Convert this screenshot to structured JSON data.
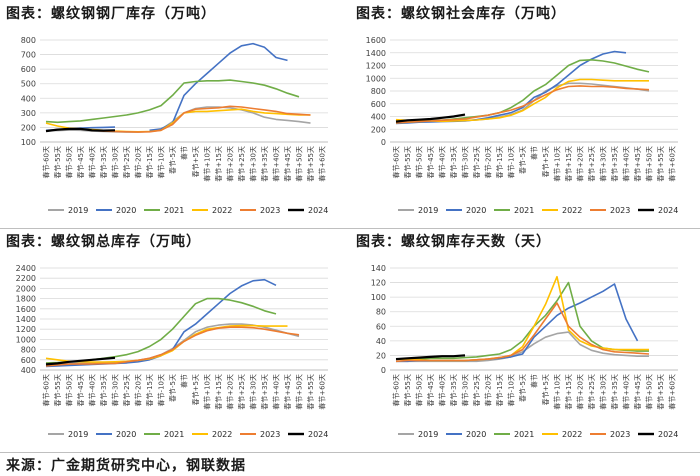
{
  "source_text": "来源：广金期货研究中心，钢联数据",
  "x_categories": [
    "春节-60天",
    "春节-55天",
    "春节-50天",
    "春节-45天",
    "春节-40天",
    "春节-35天",
    "春节-30天",
    "春节-25天",
    "春节-20天",
    "春节-15天",
    "春节-10天",
    "春节-5天",
    "春节",
    "春节+5天",
    "春节+10天",
    "春节+15天",
    "春节+20天",
    "春节+25天",
    "春节+30天",
    "春节+35天",
    "春节+40天",
    "春节+45天",
    "春节+50天",
    "春节+55天",
    "春节+60天"
  ],
  "series_colors": {
    "2019": "#a5a5a5",
    "2020": "#4472c4",
    "2021": "#70ad47",
    "2022": "#ffc000",
    "2023": "#ed7d31",
    "2024": "#000000"
  },
  "chart_data": [
    {
      "type": "line",
      "title": "图表：螺纹钢钢厂库存（万吨）",
      "yticks": [
        100,
        200,
        300,
        400,
        500,
        600,
        700,
        800
      ],
      "ylim": [
        100,
        800
      ],
      "series": [
        {
          "name": "2019",
          "values": [
            180,
            178,
            182,
            180,
            175,
            172,
            170,
            168,
            168,
            172,
            185,
            240,
            300,
            330,
            340,
            340,
            335,
            320,
            300,
            270,
            255,
            248,
            240,
            230,
            null
          ]
        },
        {
          "name": "2020",
          "values": [
            180,
            185,
            190,
            195,
            198,
            200,
            202,
            null,
            null,
            180,
            190,
            230,
            420,
            500,
            570,
            640,
            710,
            760,
            775,
            750,
            680,
            660,
            null,
            null,
            null
          ]
        },
        {
          "name": "2021",
          "values": [
            240,
            235,
            240,
            245,
            255,
            265,
            275,
            285,
            300,
            320,
            350,
            420,
            505,
            515,
            520,
            520,
            525,
            515,
            505,
            490,
            465,
            435,
            410,
            null,
            null
          ]
        },
        {
          "name": "2022",
          "values": [
            230,
            210,
            195,
            190,
            185,
            180,
            175,
            172,
            170,
            172,
            180,
            230,
            300,
            310,
            310,
            315,
            320,
            325,
            310,
            300,
            295,
            290,
            285,
            285,
            null
          ]
        },
        {
          "name": "2023",
          "values": [
            175,
            185,
            190,
            190,
            180,
            175,
            172,
            170,
            168,
            170,
            180,
            220,
            300,
            325,
            330,
            335,
            345,
            340,
            330,
            320,
            310,
            295,
            290,
            285,
            null
          ]
        },
        {
          "name": "2024",
          "values": [
            175,
            185,
            190,
            190,
            180,
            178,
            180,
            null,
            null,
            null,
            null,
            null,
            null,
            null,
            null,
            null,
            null,
            null,
            null,
            null,
            null,
            null,
            null,
            null,
            null
          ]
        }
      ],
      "legend": [
        "2019",
        "2020",
        "2021",
        "2022",
        "2023",
        "2024"
      ]
    },
    {
      "type": "line",
      "title": "图表：螺纹钢社会库存（万吨）",
      "yticks": [
        0,
        200,
        400,
        600,
        800,
        1000,
        1200,
        1400,
        1600
      ],
      "ylim": [
        0,
        1600
      ],
      "series": [
        {
          "name": "2019",
          "values": [
            330,
            340,
            345,
            350,
            345,
            340,
            340,
            345,
            360,
            390,
            430,
            500,
            650,
            800,
            880,
            920,
            920,
            910,
            890,
            870,
            850,
            830,
            800,
            null,
            null
          ]
        },
        {
          "name": "2020",
          "values": [
            290,
            300,
            310,
            315,
            320,
            325,
            330,
            350,
            380,
            420,
            460,
            540,
            700,
            780,
            900,
            1050,
            1200,
            1300,
            1380,
            1420,
            1400,
            null,
            null,
            null,
            null
          ]
        },
        {
          "name": "2021",
          "values": [
            300,
            310,
            320,
            330,
            340,
            360,
            380,
            400,
            420,
            460,
            540,
            650,
            800,
            900,
            1050,
            1200,
            1280,
            1290,
            1270,
            1240,
            1190,
            1140,
            1100,
            null,
            null
          ]
        },
        {
          "name": "2022",
          "values": [
            350,
            340,
            335,
            330,
            325,
            330,
            335,
            345,
            360,
            380,
            420,
            490,
            600,
            700,
            850,
            950,
            980,
            980,
            970,
            960,
            960,
            960,
            960,
            null,
            null
          ]
        },
        {
          "name": "2023",
          "values": [
            300,
            310,
            320,
            330,
            340,
            350,
            360,
            390,
            420,
            460,
            500,
            560,
            650,
            740,
            820,
            870,
            880,
            870,
            870,
            860,
            840,
            830,
            820,
            null,
            null
          ]
        },
        {
          "name": "2024",
          "values": [
            320,
            340,
            350,
            360,
            380,
            400,
            430,
            null,
            null,
            null,
            null,
            null,
            null,
            null,
            null,
            null,
            null,
            null,
            null,
            null,
            null,
            null,
            null,
            null,
            null
          ]
        }
      ],
      "legend": [
        "2019",
        "2020",
        "2021",
        "2022",
        "2023",
        "2024"
      ]
    },
    {
      "type": "line",
      "title": "图表：螺纹钢总库存（万吨）",
      "yticks": [
        400,
        600,
        800,
        1000,
        1200,
        1400,
        1600,
        1800,
        2000,
        2200,
        2400
      ],
      "ylim": [
        400,
        2400
      ],
      "series": [
        {
          "name": "2019",
          "values": [
            520,
            530,
            540,
            545,
            545,
            545,
            550,
            560,
            590,
            630,
            700,
            820,
            980,
            1150,
            1240,
            1280,
            1300,
            1300,
            1280,
            1240,
            1180,
            1120,
            1060,
            null,
            null
          ]
        },
        {
          "name": "2020",
          "values": [
            470,
            480,
            490,
            500,
            510,
            520,
            530,
            540,
            560,
            600,
            680,
            800,
            1150,
            1300,
            1500,
            1700,
            1900,
            2050,
            2150,
            2170,
            2060,
            null,
            null,
            null,
            null
          ]
        },
        {
          "name": "2021",
          "values": [
            540,
            545,
            560,
            575,
            600,
            630,
            660,
            700,
            760,
            860,
            1000,
            1200,
            1450,
            1700,
            1800,
            1800,
            1770,
            1720,
            1650,
            1560,
            1500,
            null,
            null,
            null,
            null
          ]
        },
        {
          "name": "2022",
          "values": [
            630,
            600,
            570,
            560,
            555,
            555,
            560,
            570,
            590,
            620,
            680,
            780,
            960,
            1100,
            1200,
            1230,
            1260,
            1270,
            1270,
            1260,
            1260,
            1260,
            null,
            null,
            null
          ]
        },
        {
          "name": "2023",
          "values": [
            480,
            500,
            515,
            520,
            520,
            525,
            530,
            560,
            590,
            630,
            700,
            800,
            960,
            1080,
            1170,
            1220,
            1240,
            1240,
            1230,
            1200,
            1160,
            1120,
            1090,
            null,
            null
          ]
        },
        {
          "name": "2024",
          "values": [
            510,
            530,
            560,
            580,
            600,
            620,
            640,
            null,
            null,
            null,
            null,
            null,
            null,
            null,
            null,
            null,
            null,
            null,
            null,
            null,
            null,
            null,
            null,
            null,
            null
          ]
        }
      ],
      "legend": [
        "2019",
        "2020",
        "2021",
        "2022",
        "2023",
        "2024"
      ]
    },
    {
      "type": "line",
      "title": "图表：螺纹钢库存天数（天）",
      "yticks": [
        0,
        20,
        40,
        60,
        80,
        100,
        120,
        140
      ],
      "ylim": [
        0,
        140
      ],
      "series": [
        {
          "name": "2019",
          "values": [
            12,
            12,
            12,
            12,
            12,
            12,
            12,
            12,
            13,
            15,
            18,
            25,
            36,
            45,
            50,
            52,
            35,
            27,
            23,
            21,
            20,
            19,
            19,
            null,
            null
          ]
        },
        {
          "name": "2020",
          "values": [
            12,
            12,
            13,
            13,
            13,
            13,
            13,
            14,
            15,
            16,
            18,
            22,
            45,
            60,
            75,
            85,
            92,
            100,
            108,
            118,
            70,
            40,
            null,
            null,
            null
          ]
        },
        {
          "name": "2021",
          "values": [
            15,
            15,
            15,
            16,
            16,
            16,
            17,
            18,
            20,
            22,
            28,
            40,
            60,
            75,
            95,
            120,
            60,
            40,
            30,
            28,
            27,
            26,
            26,
            null,
            null
          ]
        },
        {
          "name": "2022",
          "values": [
            15,
            14,
            14,
            13,
            13,
            13,
            13,
            14,
            15,
            17,
            20,
            32,
            60,
            90,
            128,
            55,
            40,
            33,
            30,
            28,
            28,
            28,
            28,
            null,
            null
          ]
        },
        {
          "name": "2023",
          "values": [
            12,
            13,
            13,
            13,
            13,
            13,
            13,
            14,
            15,
            17,
            20,
            28,
            48,
            70,
            92,
            60,
            45,
            35,
            28,
            25,
            24,
            23,
            22,
            null,
            null
          ]
        },
        {
          "name": "2024",
          "values": [
            15,
            16,
            17,
            18,
            19,
            19,
            20,
            null,
            null,
            null,
            null,
            null,
            null,
            null,
            null,
            null,
            null,
            null,
            null,
            null,
            null,
            null,
            null,
            null,
            null
          ]
        }
      ],
      "legend": [
        "2019",
        "2020",
        "2021",
        "2022",
        "2023",
        "2024"
      ]
    }
  ]
}
